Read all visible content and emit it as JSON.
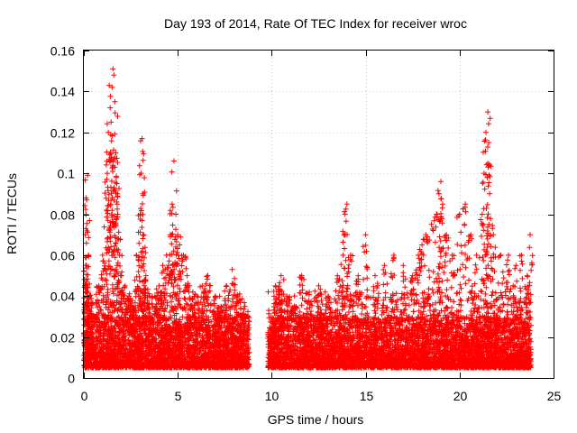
{
  "chart_data": {
    "type": "scatter",
    "title": "Day 193 of 2014, Rate Of TEC Index for receiver wroc",
    "xlabel": "GPS time / hours",
    "ylabel": "ROTI / TECUs",
    "xlim": [
      0,
      25
    ],
    "ylim": [
      0,
      0.16
    ],
    "xticks": [
      0,
      5,
      10,
      15,
      20,
      25
    ],
    "xtick_labels": [
      "0",
      "5",
      "10",
      "15",
      "20",
      "25"
    ],
    "yticks": [
      0,
      0.02,
      0.04,
      0.06,
      0.08,
      0.1,
      0.12,
      0.14,
      0.16
    ],
    "ytick_labels": [
      "0",
      "0.02",
      "0.04",
      "0.06",
      "0.08",
      "0.1",
      "0.12",
      "0.14",
      "0.16"
    ],
    "grid": true,
    "marker": "+",
    "color": "#ff0000",
    "coverage_hours": [
      [
        0,
        8.8
      ],
      [
        9.8,
        23.8
      ]
    ],
    "baseline_range": [
      0.005,
      0.03
    ],
    "series": [
      {
        "name": "ROTI",
        "x": [
          0.05,
          0.1,
          0.15,
          0.2,
          0.25,
          0.3,
          0.5,
          0.8,
          1.0,
          1.2,
          1.25,
          1.3,
          1.35,
          1.4,
          1.45,
          1.5,
          1.55,
          1.6,
          1.65,
          1.7,
          1.75,
          1.8,
          1.9,
          2.0,
          2.2,
          2.4,
          2.6,
          2.8,
          3.0,
          3.05,
          3.1,
          3.15,
          3.2,
          3.3,
          3.5,
          3.8,
          4.0,
          4.2,
          4.4,
          4.6,
          4.7,
          4.8,
          4.9,
          5.0,
          5.1,
          5.3,
          5.5,
          5.8,
          6.0,
          6.3,
          6.6,
          7.0,
          7.3,
          7.6,
          7.9,
          8.2,
          8.6,
          10.2,
          10.5,
          10.8,
          11.2,
          11.6,
          12.0,
          12.5,
          13.0,
          13.5,
          13.8,
          13.9,
          14.0,
          14.2,
          14.6,
          15.0,
          15.5,
          16.0,
          16.5,
          17.0,
          17.5,
          17.8,
          18.0,
          18.2,
          18.5,
          18.8,
          18.9,
          19.0,
          19.1,
          19.3,
          19.6,
          20.0,
          20.3,
          20.6,
          20.9,
          21.2,
          21.3,
          21.4,
          21.5,
          21.55,
          21.6,
          21.8,
          22.2,
          22.6,
          23.0,
          23.3,
          23.6,
          23.75
        ],
        "y": [
          0.045,
          0.055,
          0.087,
          0.099,
          0.06,
          0.04,
          0.03,
          0.045,
          0.06,
          0.082,
          0.1,
          0.12,
          0.143,
          0.132,
          0.125,
          0.142,
          0.151,
          0.148,
          0.135,
          0.11,
          0.095,
          0.08,
          0.06,
          0.05,
          0.045,
          0.04,
          0.035,
          0.06,
          0.08,
          0.1,
          0.117,
          0.09,
          0.07,
          0.05,
          0.04,
          0.035,
          0.045,
          0.055,
          0.06,
          0.07,
          0.085,
          0.106,
          0.08,
          0.07,
          0.065,
          0.06,
          0.05,
          0.042,
          0.04,
          0.045,
          0.05,
          0.04,
          0.035,
          0.045,
          0.053,
          0.04,
          0.03,
          0.045,
          0.05,
          0.04,
          0.035,
          0.05,
          0.042,
          0.045,
          0.04,
          0.05,
          0.06,
          0.08,
          0.085,
          0.06,
          0.05,
          0.07,
          0.05,
          0.055,
          0.06,
          0.055,
          0.05,
          0.06,
          0.065,
          0.07,
          0.075,
          0.08,
          0.09,
          0.096,
          0.085,
          0.07,
          0.06,
          0.08,
          0.085,
          0.07,
          0.06,
          0.08,
          0.1,
          0.12,
          0.13,
          0.115,
          0.09,
          0.07,
          0.06,
          0.06,
          0.055,
          0.06,
          0.05,
          0.07
        ]
      }
    ]
  }
}
